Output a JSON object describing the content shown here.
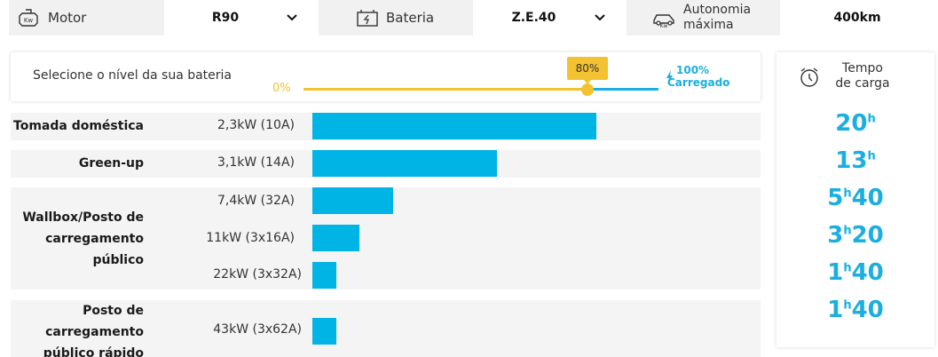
{
  "selectors": {
    "motor_label": "Motor",
    "motor_value": "R90",
    "battery_label": "Bateria",
    "battery_value": "Z.E.40",
    "autonomy_label_1": "Autonomia",
    "autonomy_label_2": "máxima",
    "autonomy_value": "400km"
  },
  "battery_slider": {
    "label": "Selecione o nível da sua bateria",
    "min_label": "0%",
    "current_label": "80%",
    "current_level": 80,
    "max_label_1": "100%",
    "max_label_2": "Carregado",
    "colors": {
      "filled": "#f2c230",
      "remaining": "#1aafe0"
    }
  },
  "charging": {
    "bar_color": "#00b4e6",
    "categories": [
      {
        "name_lines": [
          "Tomada doméstica"
        ],
        "options": [
          {
            "power": "2,3kW (10A)",
            "bar_fraction": 1.0
          }
        ]
      },
      {
        "name_lines": [
          "Green-up"
        ],
        "options": [
          {
            "power": "3,1kW (14A)",
            "bar_fraction": 0.65
          }
        ]
      },
      {
        "name_lines": [
          "Wallbox/Posto de",
          "carregamento",
          "público"
        ],
        "options": [
          {
            "power": "7,4kW (32A)",
            "bar_fraction": 0.285
          },
          {
            "power": "11kW (3x16A)",
            "bar_fraction": 0.165
          },
          {
            "power": "22kW (3x32A)",
            "bar_fraction": 0.085
          }
        ]
      },
      {
        "name_lines": [
          "Posto de",
          "carregamento",
          "público rápido"
        ],
        "options": [
          {
            "power": "43kW (3x62A)",
            "bar_fraction": 0.085
          }
        ]
      }
    ]
  },
  "charge_time": {
    "title_1": "Tempo",
    "title_2": "de carga",
    "times": [
      {
        "h": "20",
        "unit": "h",
        "m": ""
      },
      {
        "h": "13",
        "unit": "h",
        "m": ""
      },
      {
        "h": "5",
        "unit": "h",
        "m": "40"
      },
      {
        "h": "3",
        "unit": "h",
        "m": "20"
      },
      {
        "h": "1",
        "unit": "h",
        "m": "40"
      },
      {
        "h": "1",
        "unit": "h",
        "m": "40"
      }
    ]
  }
}
